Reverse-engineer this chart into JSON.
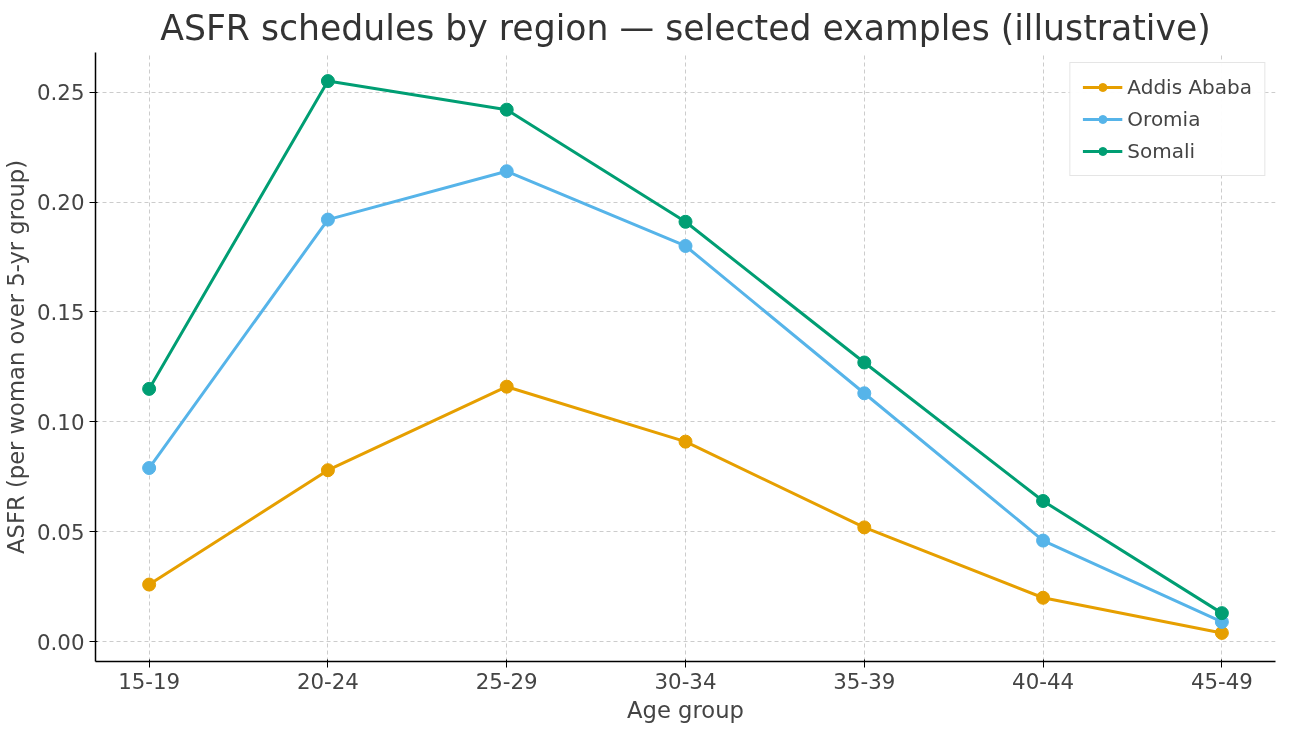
{
  "chart_data": {
    "type": "line",
    "title": "ASFR schedules by region — selected examples (illustrative)",
    "xlabel": "Age group",
    "ylabel": "ASFR (per woman over 5-yr group)",
    "categories": [
      "15-19",
      "20-24",
      "25-29",
      "30-34",
      "35-39",
      "40-44",
      "45-49"
    ],
    "series": [
      {
        "name": "Addis Ababa",
        "color": "#e69f00",
        "values": [
          0.026,
          0.078,
          0.116,
          0.091,
          0.052,
          0.02,
          0.004
        ]
      },
      {
        "name": "Oromia",
        "color": "#56b4e9",
        "values": [
          0.079,
          0.192,
          0.214,
          0.18,
          0.113,
          0.046,
          0.009
        ]
      },
      {
        "name": "Somali",
        "color": "#009e73",
        "values": [
          0.115,
          0.255,
          0.242,
          0.191,
          0.127,
          0.064,
          0.013
        ]
      }
    ],
    "ylim": [
      -0.009,
      0.268
    ],
    "yticks": [
      {
        "value": 0,
        "label": "0.00"
      },
      {
        "value": 0.05,
        "label": "0.05"
      },
      {
        "value": 0.1,
        "label": "0.10"
      },
      {
        "value": 0.15,
        "label": "0.15"
      },
      {
        "value": 0.2,
        "label": "0.20"
      },
      {
        "value": 0.25,
        "label": "0.25"
      }
    ],
    "grid": true,
    "legend": "top right",
    "marker": "circle",
    "line_style": "solid"
  }
}
